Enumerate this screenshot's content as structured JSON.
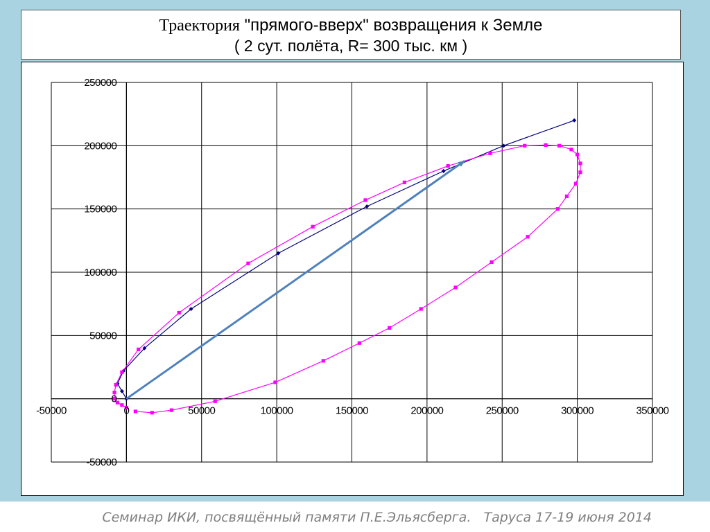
{
  "title": {
    "line1_part1": "Траектория",
    "line1_part2": " \"прямого-вверх\" возвращения к Земле",
    "line2": "( 2 сут. полёта, R= 300 тыс. км )"
  },
  "footer": {
    "text": "Семинар ИКИ, посвящённый памяти П.Е.Эльясберга.   Таруса 17-19 июня 2014"
  },
  "colors": {
    "series_trajectory": "#000080",
    "series_ellipse": "#ff00ff",
    "arrow": "#4f81bd",
    "grid": "#000000"
  },
  "chart_data": {
    "type": "scatter",
    "title": "",
    "xlabel": "",
    "ylabel": "",
    "xlim": [
      -50000,
      350000
    ],
    "ylim": [
      -50000,
      250000
    ],
    "x_ticks": [
      "-50000",
      "0",
      "50000",
      "100000",
      "150000",
      "200000",
      "250000",
      "300000",
      "350000"
    ],
    "y_ticks": [
      "250000",
      "200000",
      "150000",
      "100000",
      "50000",
      "0",
      "-50000"
    ],
    "grid": true,
    "legend": "none",
    "series": [
      {
        "color": "#000080",
        "marker": "diamond",
        "points": [
          [
            0,
            0
          ],
          [
            -3000,
            6000
          ],
          [
            -6000,
            12000
          ],
          [
            -2000,
            22000
          ],
          [
            12000,
            40000
          ],
          [
            43000,
            71000
          ],
          [
            101000,
            115000
          ],
          [
            160000,
            152000
          ],
          [
            211000,
            180000
          ],
          [
            251000,
            200000
          ],
          [
            298000,
            220000
          ]
        ]
      },
      {
        "color": "#ff00ff",
        "marker": "square",
        "points": [
          [
            0,
            -7000
          ],
          [
            -3000,
            -5000
          ],
          [
            -6000,
            -3000
          ],
          [
            -8000,
            0
          ],
          [
            -8000,
            5000
          ],
          [
            -7000,
            11000
          ],
          [
            -3000,
            21000
          ],
          [
            8000,
            39000
          ],
          [
            35000,
            68000
          ],
          [
            81000,
            107000
          ],
          [
            124000,
            136000
          ],
          [
            159000,
            157000
          ],
          [
            185000,
            171000
          ],
          [
            214000,
            184000
          ],
          [
            242000,
            194000
          ],
          [
            265000,
            200000
          ],
          [
            279000,
            200500
          ],
          [
            288000,
            200000
          ],
          [
            296000,
            197000
          ],
          [
            300000,
            193000
          ],
          [
            302000,
            186000
          ],
          [
            302000,
            179000
          ],
          [
            299000,
            170000
          ],
          [
            293000,
            160000
          ],
          [
            287000,
            150000
          ],
          [
            267000,
            128000
          ],
          [
            243000,
            108000
          ],
          [
            219000,
            88000
          ],
          [
            196000,
            71000
          ],
          [
            175000,
            56000
          ],
          [
            155000,
            44000
          ],
          [
            131000,
            30000
          ],
          [
            99000,
            13000
          ],
          [
            59000,
            -2000
          ],
          [
            30000,
            -9000
          ],
          [
            17000,
            -11000
          ],
          [
            6000,
            -10000
          ]
        ]
      }
    ],
    "annotations": [
      {
        "type": "arrow",
        "color": "#4f81bd",
        "from": [
          0,
          0
        ],
        "to": [
          225000,
          188000
        ]
      }
    ]
  }
}
